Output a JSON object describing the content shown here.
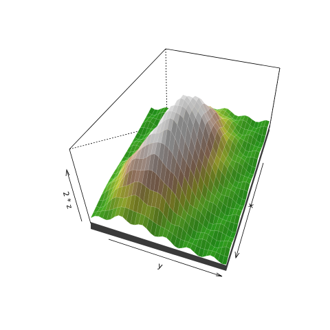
{
  "chart_data": {
    "type": "surface3d",
    "title": "",
    "xlabel": "x",
    "ylabel": "y",
    "zlabel": "2 * z",
    "box": true,
    "shade": true,
    "border_color": "#555555",
    "skirt_color": "#3a3a3a",
    "colors": {
      "low": "#22a51c",
      "mid_low": "#5fbf2a",
      "mid": "#c9d13a",
      "mid_high": "#c89a7a",
      "high": "#dcc9c2",
      "peak": "#f2f2f2"
    }
  }
}
